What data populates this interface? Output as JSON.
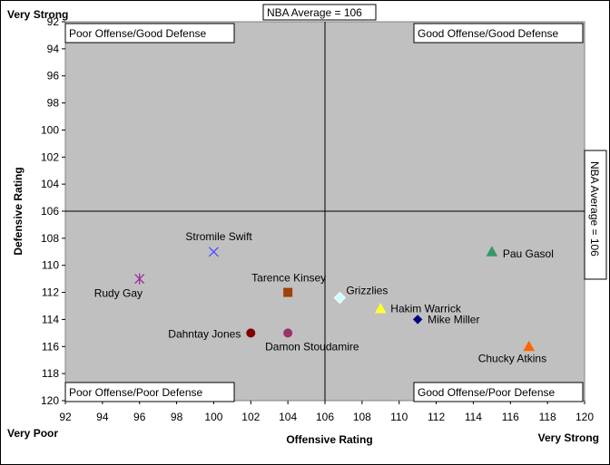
{
  "chart_data": {
    "type": "scatter",
    "xlabel": "Offensive Rating",
    "ylabel": "Defensive Rating",
    "xlim": [
      92,
      120
    ],
    "ylim": [
      92,
      120
    ],
    "y_inverted": true,
    "xticks": [
      92,
      94,
      96,
      98,
      100,
      102,
      104,
      106,
      108,
      110,
      112,
      114,
      116,
      118,
      120
    ],
    "yticks": [
      92,
      94,
      96,
      98,
      100,
      102,
      104,
      106,
      108,
      110,
      112,
      114,
      116,
      118,
      120
    ],
    "grid": false,
    "background": "#c0c0c0",
    "corner_labels": {
      "top_left": "Very Strong",
      "bottom_left": "Very Poor",
      "bottom_right": "Very Strong"
    },
    "quadrant_labels": {
      "top_left": "Poor Offense/Good Defense",
      "top_right": "Good Offense/Good Defense",
      "bottom_left": "Poor Offense/Poor Defense",
      "bottom_right": "Good Offense/Poor Defense"
    },
    "reference_lines": {
      "x": {
        "value": 106,
        "label": "NBA Average = 106"
      },
      "y": {
        "value": 106,
        "label": "NBA Average = 106"
      }
    },
    "points": [
      {
        "name": "Stromile Swift",
        "x": 100,
        "y": 109,
        "marker": "x",
        "color": "#4a4aff"
      },
      {
        "name": "Rudy Gay",
        "x": 96,
        "y": 111,
        "marker": "asterisk",
        "color": "#993399"
      },
      {
        "name": "Tarence Kinsey",
        "x": 104,
        "y": 112,
        "marker": "square",
        "color": "#a0400a"
      },
      {
        "name": "Grizzlies",
        "x": 106.8,
        "y": 112.4,
        "marker": "diamond",
        "color": "#ccffff"
      },
      {
        "name": "Hakim Warrick",
        "x": 109,
        "y": 113.2,
        "marker": "triangle",
        "color": "#ffff33"
      },
      {
        "name": "Mike Miller",
        "x": 111,
        "y": 114,
        "marker": "diamond",
        "color": "#000080"
      },
      {
        "name": "Dahntay Jones",
        "x": 102,
        "y": 115,
        "marker": "circle",
        "color": "#800000"
      },
      {
        "name": "Damon Stoudamire",
        "x": 104,
        "y": 115,
        "marker": "circle",
        "color": "#993366"
      },
      {
        "name": "Pau Gasol",
        "x": 115,
        "y": 109,
        "marker": "triangle",
        "color": "#339966"
      },
      {
        "name": "Chucky Atkins",
        "x": 117,
        "y": 116,
        "marker": "triangle",
        "color": "#ff6600"
      }
    ]
  }
}
